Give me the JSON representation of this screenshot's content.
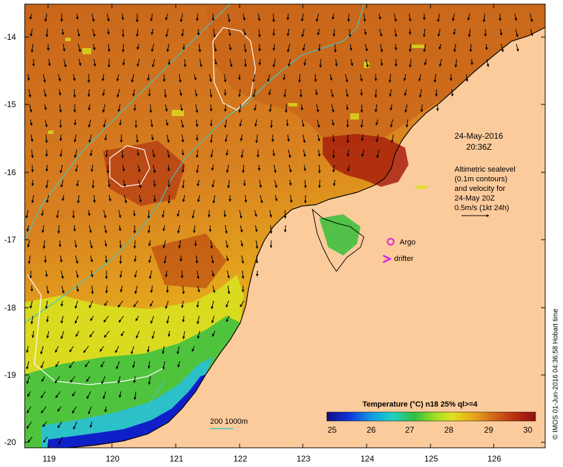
{
  "map": {
    "y_ticks": [
      "-14",
      "-15",
      "-16",
      "-17",
      "-18",
      "-19",
      "-20"
    ],
    "x_ticks": [
      "119",
      "120",
      "121",
      "122",
      "123",
      "124",
      "125",
      "126"
    ],
    "datetime_line1": "24-May-2016",
    "datetime_line2": "20:36Z",
    "altimetry_lines": [
      "Altimetric sealevel",
      "(0.1m contours)",
      "and velocity for",
      "24-May 20Z",
      "0.5m/s (1kt 24h)"
    ],
    "legend_argo": "Argo",
    "legend_drifter": "drifter",
    "depth_label": "200  1000m",
    "colorbar_title": "Temperature (°C) n18 25% ql>=4",
    "colorbar_ticks": [
      "25",
      "26",
      "27",
      "28",
      "29",
      "30"
    ],
    "credit": "© IMOS 01-Jun-2016 04:36:58 Hobart time",
    "colors": {
      "land": "#fccb9c",
      "sst_warm": "#c8641a",
      "sst_hot": "#a8200c",
      "sst_mid": "#e6a21a",
      "sst_yellow": "#d8e020",
      "sst_green": "#40c040",
      "sst_cyan": "#28c0d8",
      "sst_blue": "#1020c8",
      "contour": "#40c8c8",
      "sealevel": "#ffffff",
      "argo": "#e020e0",
      "drifter": "#e020e0"
    }
  }
}
